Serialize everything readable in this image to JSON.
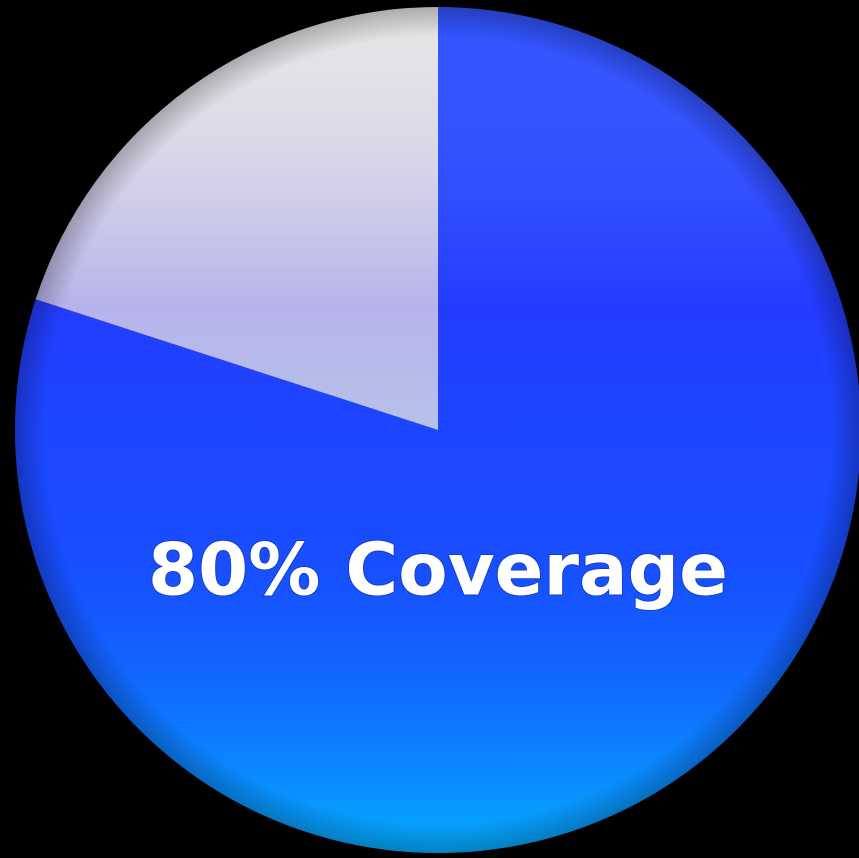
{
  "chart_data": {
    "type": "pie",
    "values": [
      80,
      20
    ],
    "value_labels": [
      "80% Coverage",
      null
    ],
    "colors": [
      "#1f45ff",
      "#e4e4e4"
    ],
    "start_angle": 0,
    "direction": "clockwise"
  }
}
